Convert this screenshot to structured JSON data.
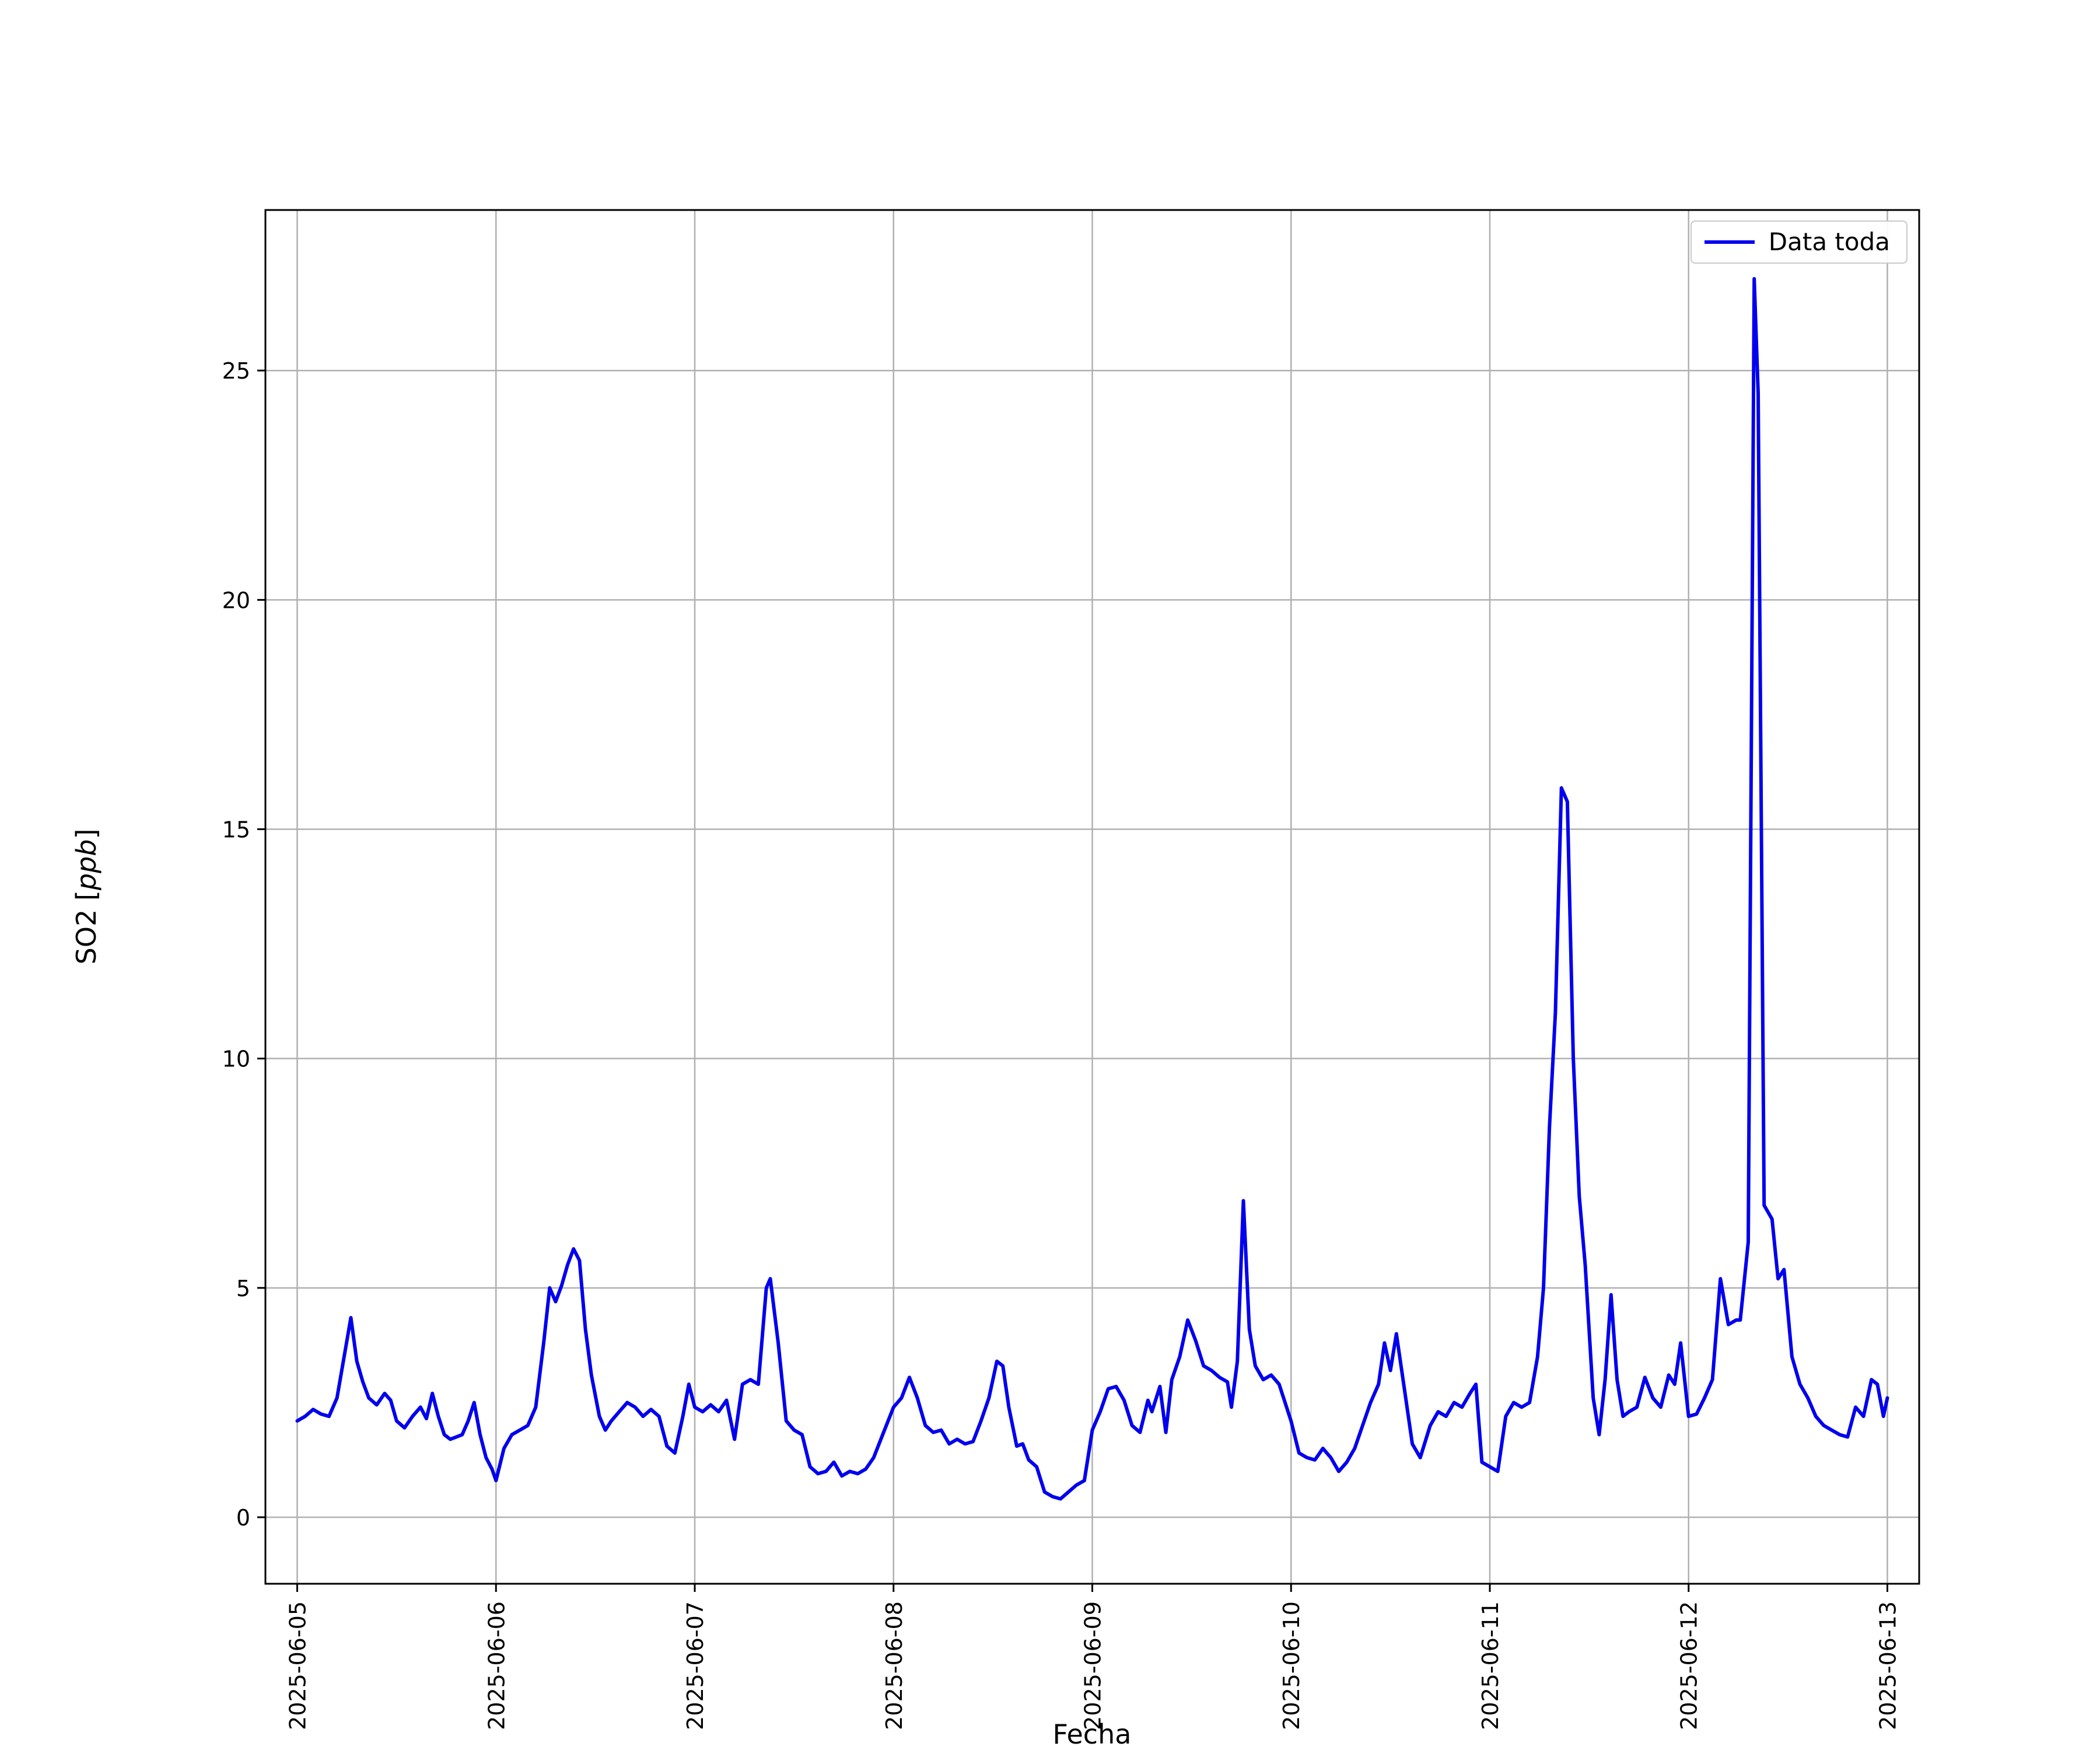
{
  "chart_data": {
    "type": "line",
    "title": "",
    "xlabel": "Fecha",
    "ylabel": "SO2 [ppb]",
    "ylabel_parts": {
      "pre": "SO2 [",
      "italic": "ppb",
      "post": "]"
    },
    "grid": true,
    "grid_color": "#b0b0b0",
    "axes_color": "#000000",
    "legend": {
      "position": "upper right",
      "entries": [
        "Data toda"
      ]
    },
    "x_units": "day of June 2025 (fractional days, 5.0 = 2025-06-05 00:00)",
    "xlim": [
      4.84,
      13.16
    ],
    "ylim": [
      -1.45,
      28.5
    ],
    "xticks": {
      "values": [
        5,
        6,
        7,
        8,
        9,
        10,
        11,
        12,
        13
      ],
      "labels": [
        "2025-06-05",
        "2025-06-06",
        "2025-06-07",
        "2025-06-08",
        "2025-06-09",
        "2025-06-10",
        "2025-06-11",
        "2025-06-12",
        "2025-06-13"
      ]
    },
    "yticks": {
      "values": [
        0,
        5,
        10,
        15,
        20,
        25
      ],
      "labels": [
        "0",
        "5",
        "10",
        "15",
        "20",
        "25"
      ]
    },
    "series": [
      {
        "name": "Data toda",
        "color": "#0000ee",
        "x": [
          5.0,
          5.04,
          5.08,
          5.12,
          5.16,
          5.2,
          5.24,
          5.27,
          5.3,
          5.33,
          5.36,
          5.4,
          5.44,
          5.47,
          5.5,
          5.54,
          5.58,
          5.62,
          5.65,
          5.68,
          5.71,
          5.74,
          5.77,
          5.8,
          5.83,
          5.86,
          5.89,
          5.92,
          5.95,
          5.98,
          6.0,
          6.04,
          6.08,
          6.12,
          6.16,
          6.2,
          6.24,
          6.27,
          6.3,
          6.33,
          6.36,
          6.39,
          6.42,
          6.45,
          6.48,
          6.52,
          6.55,
          6.58,
          6.62,
          6.66,
          6.7,
          6.74,
          6.78,
          6.82,
          6.86,
          6.9,
          6.94,
          6.97,
          7.0,
          7.04,
          7.08,
          7.12,
          7.16,
          7.2,
          7.24,
          7.28,
          7.32,
          7.36,
          7.38,
          7.42,
          7.46,
          7.5,
          7.54,
          7.58,
          7.62,
          7.66,
          7.7,
          7.74,
          7.78,
          7.82,
          7.86,
          7.9,
          7.95,
          8.0,
          8.04,
          8.08,
          8.12,
          8.16,
          8.2,
          8.24,
          8.28,
          8.32,
          8.36,
          8.4,
          8.44,
          8.48,
          8.52,
          8.55,
          8.58,
          8.62,
          8.65,
          8.68,
          8.72,
          8.76,
          8.8,
          8.84,
          8.88,
          8.92,
          8.96,
          9.0,
          9.04,
          9.08,
          9.12,
          9.16,
          9.2,
          9.24,
          9.28,
          9.3,
          9.34,
          9.37,
          9.4,
          9.44,
          9.48,
          9.52,
          9.56,
          9.6,
          9.64,
          9.68,
          9.7,
          9.73,
          9.76,
          9.79,
          9.82,
          9.86,
          9.9,
          9.94,
          10.0,
          10.04,
          10.08,
          10.12,
          10.16,
          10.2,
          10.24,
          10.28,
          10.32,
          10.36,
          10.4,
          10.44,
          10.47,
          10.5,
          10.53,
          10.57,
          10.61,
          10.65,
          10.7,
          10.74,
          10.78,
          10.82,
          10.86,
          10.9,
          10.93,
          10.96,
          11.0,
          11.04,
          11.08,
          11.12,
          11.16,
          11.2,
          11.24,
          11.27,
          11.3,
          11.33,
          11.36,
          11.39,
          11.42,
          11.45,
          11.48,
          11.52,
          11.55,
          11.58,
          11.61,
          11.64,
          11.67,
          11.7,
          11.74,
          11.78,
          11.82,
          11.86,
          11.9,
          11.93,
          11.96,
          12.0,
          12.04,
          12.08,
          12.12,
          12.16,
          12.2,
          12.24,
          12.26,
          12.3,
          12.33,
          12.35,
          12.38,
          12.42,
          12.45,
          12.48,
          12.52,
          12.56,
          12.6,
          12.64,
          12.68,
          12.72,
          12.76,
          12.8,
          12.84,
          12.88,
          12.92,
          12.95,
          12.98,
          13.0
        ],
        "y": [
          2.1,
          2.2,
          2.35,
          2.25,
          2.2,
          2.6,
          3.6,
          4.35,
          3.4,
          2.95,
          2.6,
          2.45,
          2.7,
          2.55,
          2.1,
          1.95,
          2.2,
          2.4,
          2.15,
          2.7,
          2.2,
          1.8,
          1.7,
          1.75,
          1.8,
          2.1,
          2.5,
          1.8,
          1.3,
          1.05,
          0.8,
          1.5,
          1.8,
          1.9,
          2.0,
          2.4,
          3.8,
          5.0,
          4.7,
          5.05,
          5.5,
          5.85,
          5.6,
          4.1,
          3.1,
          2.2,
          1.9,
          2.1,
          2.3,
          2.5,
          2.4,
          2.2,
          2.35,
          2.2,
          1.55,
          1.4,
          2.2,
          2.9,
          2.4,
          2.3,
          2.45,
          2.3,
          2.55,
          1.7,
          2.9,
          3.0,
          2.9,
          5.0,
          5.2,
          3.8,
          2.1,
          1.9,
          1.8,
          1.1,
          0.95,
          1.0,
          1.2,
          0.9,
          1.0,
          0.95,
          1.05,
          1.3,
          1.85,
          2.4,
          2.6,
          3.05,
          2.6,
          2.0,
          1.85,
          1.9,
          1.6,
          1.7,
          1.6,
          1.65,
          2.1,
          2.6,
          3.4,
          3.3,
          2.4,
          1.55,
          1.6,
          1.25,
          1.1,
          0.55,
          0.45,
          0.4,
          0.55,
          0.7,
          0.8,
          1.9,
          2.3,
          2.8,
          2.85,
          2.55,
          2.0,
          1.85,
          2.55,
          2.3,
          2.85,
          1.85,
          3.0,
          3.5,
          4.3,
          3.85,
          3.3,
          3.2,
          3.05,
          2.95,
          2.4,
          3.4,
          6.9,
          4.1,
          3.3,
          3.0,
          3.1,
          2.9,
          2.1,
          1.4,
          1.3,
          1.25,
          1.5,
          1.3,
          1.0,
          1.2,
          1.5,
          2.0,
          2.5,
          2.9,
          3.8,
          3.2,
          4.0,
          2.8,
          1.6,
          1.3,
          2.0,
          2.3,
          2.2,
          2.5,
          2.4,
          2.7,
          2.9,
          1.2,
          1.1,
          1.0,
          2.2,
          2.5,
          2.4,
          2.5,
          3.5,
          5.0,
          8.5,
          11.0,
          15.9,
          15.6,
          10.0,
          7.0,
          5.5,
          2.6,
          1.8,
          3.0,
          4.85,
          3.0,
          2.2,
          2.3,
          2.4,
          3.05,
          2.6,
          2.4,
          3.1,
          2.9,
          3.8,
          2.2,
          2.25,
          2.6,
          3.0,
          5.2,
          4.2,
          4.3,
          4.3,
          6.0,
          27.0,
          24.5,
          6.8,
          6.5,
          5.2,
          5.4,
          3.5,
          2.9,
          2.6,
          2.2,
          2.0,
          1.9,
          1.8,
          1.75,
          2.4,
          2.2,
          3.0,
          2.9,
          2.2,
          2.6
        ]
      }
    ]
  }
}
